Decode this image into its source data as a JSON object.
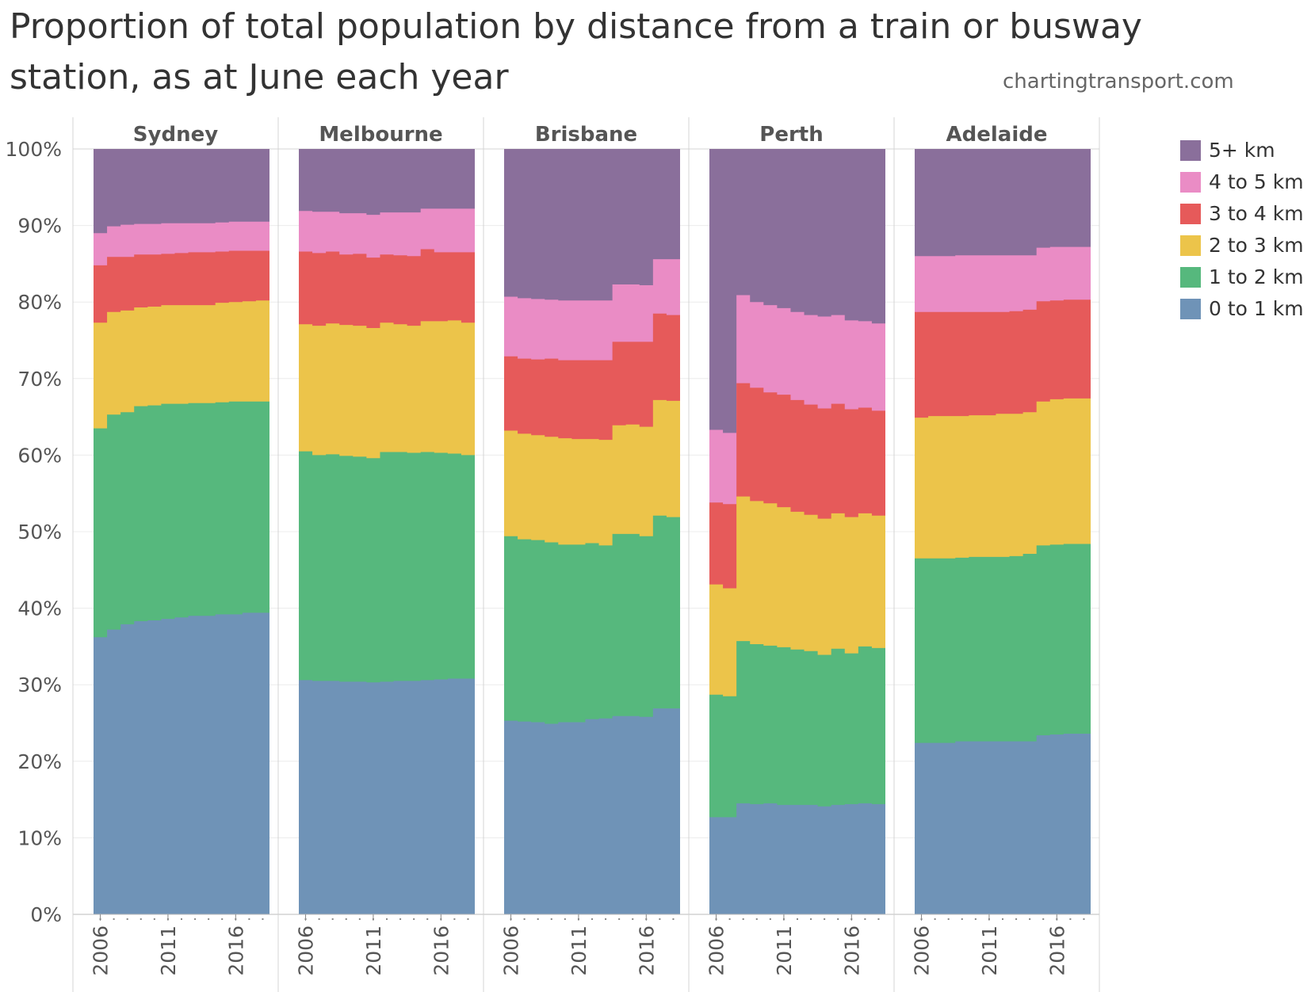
{
  "title": "Proportion of total population by distance from a train or busway station, as at June each year",
  "credit": "chartingtransport.com",
  "colors": {
    "0 to 1 km": "#6f93b7",
    "1 to 2 km": "#56b87d",
    "2 to 3 km": "#ecc44a",
    "3 to 4 km": "#e65a5a",
    "4 to 5 km": "#ea8cc5",
    "5+ km": "#8a6f9b"
  },
  "chart_data": {
    "type": "area",
    "title": "Proportion of total population by distance from a train or busway station, as at June each year",
    "xlabel": "",
    "ylabel": "",
    "ylim": [
      0,
      100
    ],
    "y_ticks": [
      "0%",
      "10%",
      "20%",
      "30%",
      "40%",
      "50%",
      "60%",
      "70%",
      "80%",
      "90%",
      "100%"
    ],
    "x_ticks": [
      "2006",
      "2011",
      "2016"
    ],
    "x": [
      2006,
      2007,
      2008,
      2009,
      2010,
      2011,
      2012,
      2013,
      2014,
      2015,
      2016,
      2017,
      2018
    ],
    "stacked": true,
    "legend_position": "right",
    "legend": [
      "5+ km",
      "4 to 5 km",
      "3 to 4 km",
      "2 to 3 km",
      "1 to 2 km",
      "0 to 1 km"
    ],
    "panels": [
      {
        "name": "Sydney",
        "cumulative_tops": {
          "0 to 1 km": [
            36.2,
            37.2,
            37.9,
            38.3,
            38.4,
            38.6,
            38.8,
            39.0,
            39.0,
            39.2,
            39.2,
            39.4,
            39.4
          ],
          "1 to 2 km": [
            63.5,
            65.3,
            65.6,
            66.4,
            66.5,
            66.7,
            66.7,
            66.8,
            66.8,
            66.9,
            67.0,
            67.0,
            67.0
          ],
          "2 to 3 km": [
            77.3,
            78.7,
            78.9,
            79.3,
            79.4,
            79.6,
            79.6,
            79.6,
            79.6,
            79.9,
            80.0,
            80.1,
            80.2
          ],
          "3 to 4 km": [
            84.8,
            85.9,
            85.9,
            86.2,
            86.2,
            86.3,
            86.4,
            86.5,
            86.5,
            86.6,
            86.7,
            86.7,
            86.7
          ],
          "4 to 5 km": [
            89.0,
            89.9,
            90.1,
            90.2,
            90.2,
            90.3,
            90.3,
            90.3,
            90.3,
            90.4,
            90.5,
            90.5,
            90.5
          ],
          "5+ km": [
            100,
            100,
            100,
            100,
            100,
            100,
            100,
            100,
            100,
            100,
            100,
            100,
            100
          ]
        }
      },
      {
        "name": "Melbourne",
        "cumulative_tops": {
          "0 to 1 km": [
            30.6,
            30.5,
            30.5,
            30.4,
            30.4,
            30.3,
            30.4,
            30.5,
            30.5,
            30.6,
            30.7,
            30.8,
            30.8
          ],
          "1 to 2 km": [
            60.5,
            60.0,
            60.1,
            59.9,
            59.8,
            59.6,
            60.4,
            60.4,
            60.3,
            60.4,
            60.3,
            60.2,
            60.0
          ],
          "2 to 3 km": [
            77.1,
            76.9,
            77.2,
            77.0,
            76.9,
            76.6,
            77.3,
            77.1,
            76.9,
            77.5,
            77.5,
            77.6,
            77.3
          ],
          "3 to 4 km": [
            86.6,
            86.4,
            86.6,
            86.2,
            86.3,
            85.8,
            86.2,
            86.1,
            86.0,
            86.9,
            86.5,
            86.5,
            86.5
          ],
          "4 to 5 km": [
            91.9,
            91.8,
            91.8,
            91.6,
            91.6,
            91.4,
            91.7,
            91.7,
            91.7,
            92.2,
            92.2,
            92.2,
            92.2
          ],
          "5+ km": [
            100,
            100,
            100,
            100,
            100,
            100,
            100,
            100,
            100,
            100,
            100,
            100,
            100
          ]
        }
      },
      {
        "name": "Brisbane",
        "cumulative_tops": {
          "0 to 1 km": [
            25.3,
            25.2,
            25.1,
            24.9,
            25.1,
            25.1,
            25.5,
            25.6,
            25.9,
            25.9,
            25.8,
            26.9,
            26.9
          ],
          "1 to 2 km": [
            49.4,
            49.0,
            48.9,
            48.6,
            48.3,
            48.3,
            48.5,
            48.2,
            49.7,
            49.7,
            49.4,
            52.1,
            51.9
          ],
          "2 to 3 km": [
            63.2,
            62.8,
            62.6,
            62.4,
            62.2,
            62.1,
            62.1,
            62.0,
            63.9,
            64.0,
            63.7,
            67.2,
            67.1
          ],
          "3 to 4 km": [
            72.9,
            72.6,
            72.5,
            72.6,
            72.4,
            72.4,
            72.4,
            72.4,
            74.8,
            74.8,
            74.8,
            78.5,
            78.3
          ],
          "4 to 5 km": [
            80.7,
            80.5,
            80.4,
            80.3,
            80.2,
            80.2,
            80.2,
            80.2,
            82.3,
            82.3,
            82.2,
            85.6,
            85.6
          ],
          "5+ km": [
            100,
            100,
            100,
            100,
            100,
            100,
            100,
            100,
            100,
            100,
            100,
            100,
            100
          ]
        }
      },
      {
        "name": "Perth",
        "cumulative_tops": {
          "0 to 1 km": [
            12.7,
            12.7,
            14.5,
            14.4,
            14.5,
            14.3,
            14.3,
            14.3,
            14.1,
            14.3,
            14.4,
            14.5,
            14.4
          ],
          "1 to 2 km": [
            28.7,
            28.5,
            35.7,
            35.3,
            35.1,
            34.9,
            34.6,
            34.4,
            33.9,
            34.7,
            34.1,
            35.0,
            34.8
          ],
          "2 to 3 km": [
            43.1,
            42.6,
            54.6,
            54.0,
            53.7,
            53.2,
            52.6,
            52.2,
            51.7,
            52.4,
            51.9,
            52.4,
            52.1
          ],
          "3 to 4 km": [
            53.8,
            53.6,
            69.4,
            68.8,
            68.2,
            67.9,
            67.2,
            66.6,
            66.1,
            66.7,
            66.0,
            66.2,
            65.8
          ],
          "4 to 5 km": [
            63.3,
            62.9,
            80.9,
            80.0,
            79.6,
            79.2,
            78.7,
            78.3,
            78.1,
            78.3,
            77.6,
            77.5,
            77.2
          ],
          "5+ km": [
            100,
            100,
            100,
            100,
            100,
            100,
            100,
            100,
            100,
            100,
            100,
            100,
            100
          ]
        }
      },
      {
        "name": "Adelaide",
        "cumulative_tops": {
          "0 to 1 km": [
            22.4,
            22.4,
            22.4,
            22.6,
            22.6,
            22.6,
            22.6,
            22.6,
            22.6,
            23.4,
            23.5,
            23.6,
            23.6
          ],
          "1 to 2 km": [
            46.5,
            46.5,
            46.5,
            46.6,
            46.7,
            46.7,
            46.7,
            46.8,
            47.1,
            48.2,
            48.3,
            48.4,
            48.4
          ],
          "2 to 3 km": [
            64.9,
            65.1,
            65.1,
            65.1,
            65.2,
            65.2,
            65.4,
            65.4,
            65.6,
            67.0,
            67.3,
            67.4,
            67.4
          ],
          "3 to 4 km": [
            78.7,
            78.7,
            78.7,
            78.7,
            78.7,
            78.7,
            78.7,
            78.8,
            79.0,
            80.1,
            80.2,
            80.3,
            80.3
          ],
          "4 to 5 km": [
            86.0,
            86.0,
            86.0,
            86.1,
            86.1,
            86.1,
            86.1,
            86.1,
            86.1,
            87.1,
            87.2,
            87.2,
            87.2
          ],
          "5+ km": [
            100,
            100,
            100,
            100,
            100,
            100,
            100,
            100,
            100,
            100,
            100,
            100,
            100
          ]
        }
      }
    ]
  }
}
